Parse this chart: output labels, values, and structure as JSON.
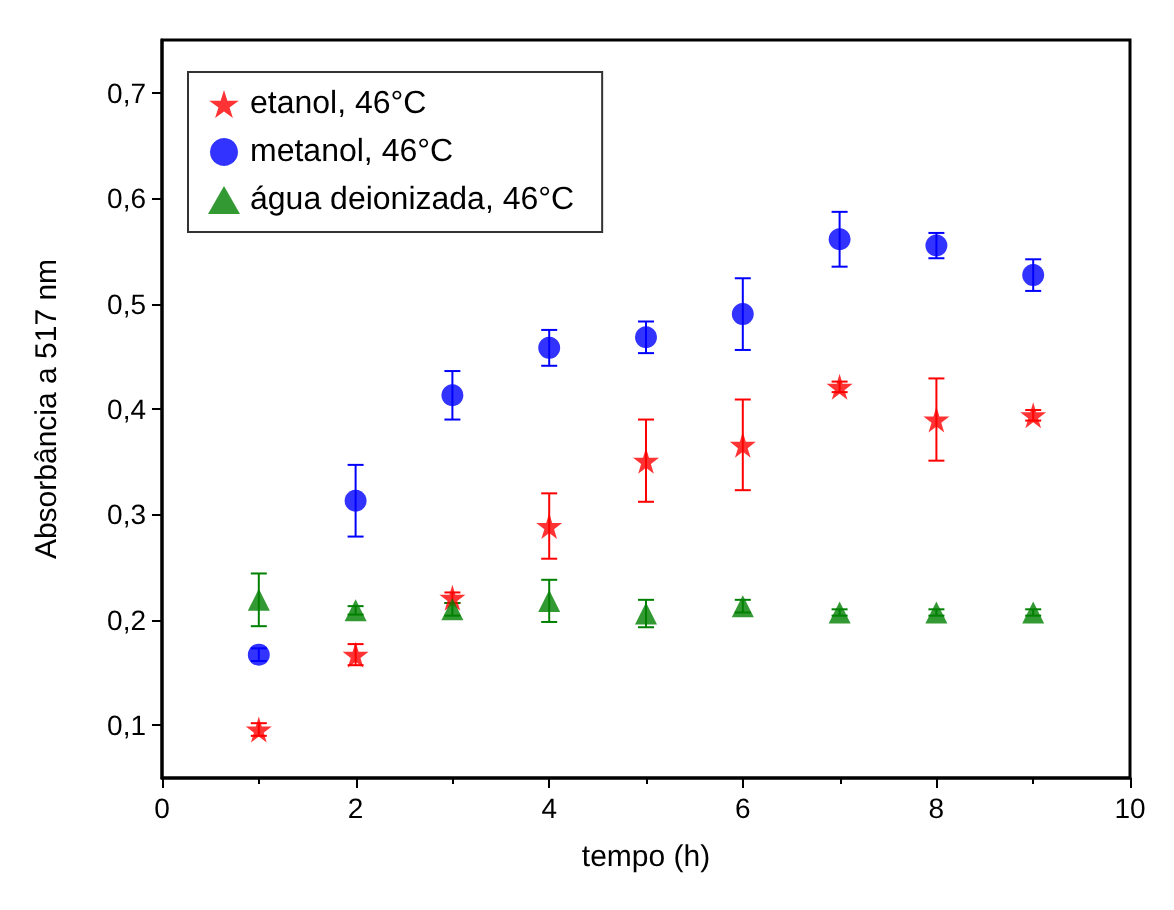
{
  "chart_data": {
    "type": "scatter",
    "xlabel": "tempo (h)",
    "ylabel": "Absorbância a 517 nm",
    "x": [
      1,
      2,
      3,
      4,
      5,
      6,
      7,
      8,
      9
    ],
    "series": [
      {
        "name": "etanol, 46°C",
        "color": "#ff0000",
        "marker": "star",
        "values": [
          0.096,
          0.167,
          0.221,
          0.289,
          0.351,
          0.366,
          0.421,
          0.39,
          0.394
        ],
        "errors": [
          0.006,
          0.01,
          0.005,
          0.031,
          0.039,
          0.043,
          0.005,
          0.039,
          0.005
        ]
      },
      {
        "name": "metanol, 46°C",
        "color": "#0000ff",
        "marker": "circle",
        "values": [
          0.167,
          0.313,
          0.413,
          0.458,
          0.468,
          0.49,
          0.561,
          0.555,
          0.527
        ],
        "errors": [
          0.006,
          0.034,
          0.023,
          0.017,
          0.015,
          0.034,
          0.026,
          0.012,
          0.015
        ]
      },
      {
        "name": "água deionizada, 46°C",
        "color": "#008000",
        "marker": "triangle",
        "values": [
          0.219,
          0.209,
          0.21,
          0.218,
          0.206,
          0.213,
          0.207,
          0.207,
          0.207
        ],
        "errors": [
          0.025,
          0.004,
          0.006,
          0.02,
          0.013,
          0.006,
          0.003,
          0.003,
          0.003
        ]
      }
    ],
    "xlim": [
      0,
      10
    ],
    "xticks": [
      0,
      2,
      4,
      6,
      8,
      10
    ],
    "ylim": [
      0.05,
      0.75
    ],
    "yticks": [
      {
        "value": 0.1,
        "label": "0,1"
      },
      {
        "value": 0.2,
        "label": "0,2"
      },
      {
        "value": 0.3,
        "label": "0,3"
      },
      {
        "value": 0.4,
        "label": "0,4"
      },
      {
        "value": 0.5,
        "label": "0,5"
      },
      {
        "value": 0.6,
        "label": "0,6"
      },
      {
        "value": 0.7,
        "label": "0,7"
      }
    ],
    "grid": false,
    "legend": "top left"
  }
}
